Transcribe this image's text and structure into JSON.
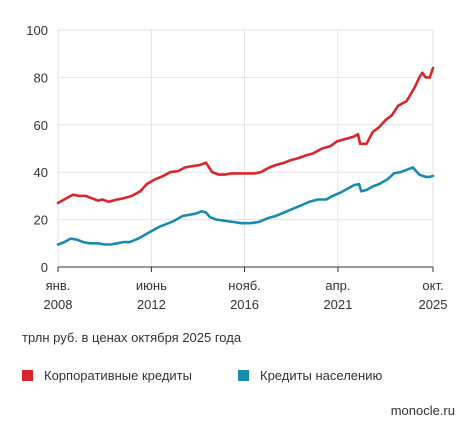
{
  "chart_data": {
    "type": "line",
    "title": "",
    "ylabel": "",
    "xlabel": "",
    "unit_note": "трлн руб. в ценах октября 2025 года",
    "ylim": [
      0,
      100
    ],
    "y_ticks": [
      "0",
      "20",
      "40",
      "60",
      "80",
      "100"
    ],
    "x_ticks": [
      {
        "month": "янв.",
        "year": "2008",
        "t": 2008.0
      },
      {
        "month": "июнь",
        "year": "2012",
        "t": 2012.42
      },
      {
        "month": "нояб.",
        "year": "2016",
        "t": 2016.83
      },
      {
        "month": "апр.",
        "year": "2021",
        "t": 2021.25
      },
      {
        "month": "окт.",
        "year": "2025",
        "t": 2025.75
      }
    ],
    "grid": true,
    "legend_placement": "bottom",
    "series": [
      {
        "name": "Корпоративные кредиты",
        "color": "#d7262d",
        "points": [
          [
            2008.0,
            27
          ],
          [
            2008.3,
            28.5
          ],
          [
            2008.7,
            30.5
          ],
          [
            2009.0,
            30
          ],
          [
            2009.3,
            30
          ],
          [
            2009.6,
            29
          ],
          [
            2009.9,
            28
          ],
          [
            2010.1,
            28.5
          ],
          [
            2010.4,
            27.5
          ],
          [
            2010.8,
            28.5
          ],
          [
            2011.1,
            29
          ],
          [
            2011.5,
            30
          ],
          [
            2011.9,
            32
          ],
          [
            2012.2,
            35
          ],
          [
            2012.6,
            37
          ],
          [
            2013.0,
            38.5
          ],
          [
            2013.3,
            40
          ],
          [
            2013.7,
            40.5
          ],
          [
            2014.0,
            42
          ],
          [
            2014.3,
            42.5
          ],
          [
            2014.7,
            43
          ],
          [
            2015.0,
            44
          ],
          [
            2015.3,
            40
          ],
          [
            2015.6,
            39
          ],
          [
            2015.9,
            39
          ],
          [
            2016.2,
            39.5
          ],
          [
            2016.6,
            39.5
          ],
          [
            2016.9,
            39.5
          ],
          [
            2017.3,
            39.5
          ],
          [
            2017.6,
            40
          ],
          [
            2018.0,
            42
          ],
          [
            2018.3,
            43
          ],
          [
            2018.7,
            44
          ],
          [
            2019.0,
            45
          ],
          [
            2019.4,
            46
          ],
          [
            2019.7,
            47
          ],
          [
            2020.1,
            48
          ],
          [
            2020.5,
            50
          ],
          [
            2020.9,
            51
          ],
          [
            2021.2,
            53
          ],
          [
            2021.6,
            54
          ],
          [
            2022.0,
            55
          ],
          [
            2022.2,
            56
          ],
          [
            2022.3,
            52
          ],
          [
            2022.6,
            52
          ],
          [
            2022.9,
            57
          ],
          [
            2023.2,
            59
          ],
          [
            2023.5,
            62
          ],
          [
            2023.8,
            64
          ],
          [
            2024.1,
            68
          ],
          [
            2024.5,
            70
          ],
          [
            2024.9,
            76
          ],
          [
            2025.1,
            80
          ],
          [
            2025.25,
            82
          ],
          [
            2025.4,
            80
          ],
          [
            2025.6,
            80
          ],
          [
            2025.75,
            84
          ]
        ]
      },
      {
        "name": "Кредиты населению",
        "color": "#1a8bb0",
        "points": [
          [
            2008.0,
            9.5
          ],
          [
            2008.3,
            10.5
          ],
          [
            2008.6,
            12
          ],
          [
            2008.9,
            11.5
          ],
          [
            2009.2,
            10.5
          ],
          [
            2009.5,
            10
          ],
          [
            2009.9,
            10
          ],
          [
            2010.2,
            9.5
          ],
          [
            2010.5,
            9.5
          ],
          [
            2010.8,
            10
          ],
          [
            2011.1,
            10.5
          ],
          [
            2011.4,
            10.5
          ],
          [
            2011.8,
            12
          ],
          [
            2012.1,
            13.5
          ],
          [
            2012.4,
            15
          ],
          [
            2012.8,
            17
          ],
          [
            2013.1,
            18
          ],
          [
            2013.5,
            19.5
          ],
          [
            2013.9,
            21.5
          ],
          [
            2014.2,
            22
          ],
          [
            2014.5,
            22.5
          ],
          [
            2014.8,
            23.5
          ],
          [
            2015.0,
            23
          ],
          [
            2015.2,
            21
          ],
          [
            2015.5,
            20
          ],
          [
            2015.9,
            19.5
          ],
          [
            2016.3,
            19
          ],
          [
            2016.7,
            18.5
          ],
          [
            2017.1,
            18.5
          ],
          [
            2017.5,
            19
          ],
          [
            2017.9,
            20.5
          ],
          [
            2018.3,
            21.5
          ],
          [
            2018.7,
            23
          ],
          [
            2019.1,
            24.5
          ],
          [
            2019.5,
            26
          ],
          [
            2019.9,
            27.5
          ],
          [
            2020.3,
            28.5
          ],
          [
            2020.7,
            28.5
          ],
          [
            2021.0,
            30
          ],
          [
            2021.4,
            31.5
          ],
          [
            2021.8,
            33.5
          ],
          [
            2022.0,
            34.5
          ],
          [
            2022.25,
            35
          ],
          [
            2022.35,
            32
          ],
          [
            2022.6,
            32.5
          ],
          [
            2022.9,
            34
          ],
          [
            2023.2,
            35
          ],
          [
            2023.6,
            37
          ],
          [
            2023.9,
            39.5
          ],
          [
            2024.2,
            40
          ],
          [
            2024.5,
            41
          ],
          [
            2024.8,
            42
          ],
          [
            2025.1,
            39
          ],
          [
            2025.4,
            38
          ],
          [
            2025.6,
            38
          ],
          [
            2025.75,
            38.5
          ]
        ]
      }
    ]
  },
  "source": "monocle.ru"
}
